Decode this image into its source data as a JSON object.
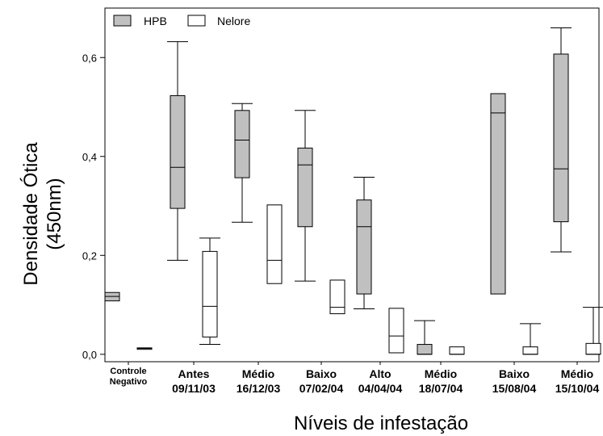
{
  "chart_data": {
    "type": "box",
    "ylabel_line1": "Densidade Ótica",
    "ylabel_line2": "(450nm)",
    "xlabel": "Níveis de infestação",
    "ylim": [
      -0.015,
      0.7
    ],
    "yticks": [
      0.0,
      0.2,
      0.4,
      0.6
    ],
    "ytick_labels": [
      "0,0",
      "0,2",
      "0,4",
      "0,6"
    ],
    "legend_position": "top-left",
    "series": [
      {
        "name": "HPB",
        "color": "#c0c0c0"
      },
      {
        "name": "Nelore",
        "color": "#ffffff"
      }
    ],
    "categories": [
      {
        "line1": "Controle",
        "line2": "Negativo",
        "small": true
      },
      {
        "line1": "Antes",
        "line2": "09/11/03"
      },
      {
        "line1": "Médio",
        "line2": "16/12/03"
      },
      {
        "line1": "Baixo",
        "line2": "07/02/04"
      },
      {
        "line1": "Alto",
        "line2": "04/04/04"
      },
      {
        "line1": "Médio",
        "line2": "18/07/04"
      },
      {
        "line1": "Baixo",
        "line2": "15/08/04"
      },
      {
        "line1": "Médio",
        "line2": "15/10/04"
      }
    ],
    "boxes": [
      {
        "category": 0,
        "series": 0,
        "min": 0.108,
        "q1": 0.108,
        "median": 0.117,
        "q3": 0.125,
        "max": 0.125
      },
      {
        "category": 0,
        "series": 1,
        "min": 0.01,
        "q1": 0.01,
        "median": 0.012,
        "q3": 0.013,
        "max": 0.013
      },
      {
        "category": 1,
        "series": 0,
        "min": 0.19,
        "q1": 0.295,
        "median": 0.378,
        "q3": 0.523,
        "max": 0.632
      },
      {
        "category": 1,
        "series": 1,
        "min": 0.02,
        "q1": 0.035,
        "median": 0.097,
        "q3": 0.208,
        "max": 0.235
      },
      {
        "category": 2,
        "series": 0,
        "min": 0.267,
        "q1": 0.357,
        "median": 0.433,
        "q3": 0.493,
        "max": 0.507
      },
      {
        "category": 2,
        "series": 1,
        "min": 0.143,
        "q1": 0.143,
        "median": 0.19,
        "q3": 0.302,
        "max": 0.302
      },
      {
        "category": 3,
        "series": 0,
        "min": 0.148,
        "q1": 0.258,
        "median": 0.383,
        "q3": 0.417,
        "max": 0.493
      },
      {
        "category": 3,
        "series": 1,
        "min": 0.082,
        "q1": 0.082,
        "median": 0.095,
        "q3": 0.15,
        "max": 0.15
      },
      {
        "category": 4,
        "series": 0,
        "min": 0.092,
        "q1": 0.122,
        "median": 0.258,
        "q3": 0.312,
        "max": 0.358
      },
      {
        "category": 4,
        "series": 1,
        "min": 0.003,
        "q1": 0.003,
        "median": 0.037,
        "q3": 0.093,
        "max": 0.093
      },
      {
        "category": 5,
        "series": 0,
        "min": 0.0,
        "q1": 0.0,
        "median": 0.0,
        "q3": 0.02,
        "max": 0.068
      },
      {
        "category": 5,
        "series": 1,
        "min": 0.0,
        "q1": 0.0,
        "median": 0.0,
        "q3": 0.015,
        "max": 0.015
      },
      {
        "category": 6,
        "series": 0,
        "min": 0.122,
        "q1": 0.122,
        "median": 0.488,
        "q3": 0.527,
        "max": 0.527
      },
      {
        "category": 6,
        "series": 1,
        "min": 0.0,
        "q1": 0.0,
        "median": 0.0,
        "q3": 0.015,
        "max": 0.062
      },
      {
        "category": 7,
        "series": 0,
        "min": 0.207,
        "q1": 0.268,
        "median": 0.375,
        "q3": 0.607,
        "max": 0.66
      },
      {
        "category": 7,
        "series": 1,
        "min": 0.0,
        "q1": 0.0,
        "median": 0.0,
        "q3": 0.022,
        "max": 0.095
      }
    ]
  }
}
